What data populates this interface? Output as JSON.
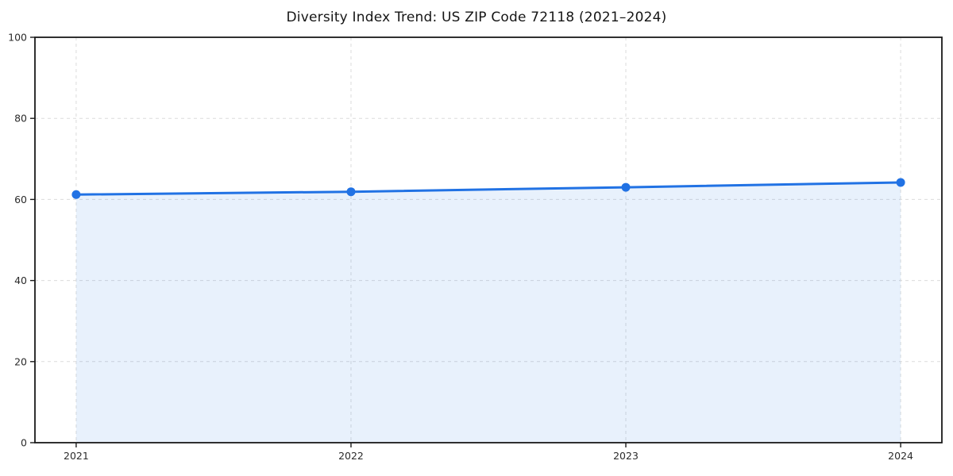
{
  "figure": {
    "background": "#ffffff"
  },
  "chart_data": {
    "type": "area",
    "title": "Diversity Index Trend: US ZIP Code 72118 (2021–2024)",
    "x": [
      2021,
      2022,
      2023,
      2024
    ],
    "series": [
      {
        "name": "Diversity Index",
        "values": [
          61.2,
          61.9,
          63.0,
          64.2
        ]
      }
    ],
    "xticks": [
      "2021",
      "2022",
      "2023",
      "2024"
    ],
    "yticks": [
      0,
      20,
      40,
      60,
      80,
      100
    ],
    "xlim": [
      2020.85,
      2024.15
    ],
    "ylim": [
      0,
      100
    ],
    "xlabel": "",
    "ylabel": "",
    "grid": "dashed-both-axes",
    "legend": "none",
    "marker": "circle",
    "colors": {
      "line": "#2172e4",
      "marker": "#2172e4",
      "fill": "rgba(33,114,228,0.10)",
      "grid": "#dcdcdc",
      "axis": "#1a1a1a",
      "tick_label": "#2b2b2b",
      "background": "#ffffff"
    }
  }
}
